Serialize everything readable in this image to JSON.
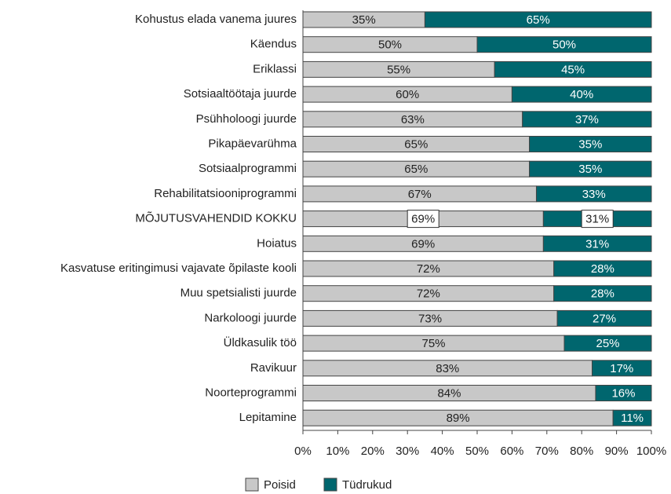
{
  "chart_data": {
    "type": "bar",
    "orientation": "horizontal",
    "stacked": true,
    "categories": [
      "Kohustus elada vanema juures",
      "Käendus",
      "Eriklassi",
      "Sotsiaaltöötaja juurde",
      "Psühholoogi juurde",
      "Pikapäevarühma",
      "Sotsiaalprogrammi",
      "Rehabilitatsiooniprogrammi",
      "MÕJUTUSVAHENDID KOKKU",
      "Hoiatus",
      "Kasvatuse eritingimusi vajavate õpilaste kooli",
      "Muu spetsialisti juurde",
      "Narkoloogi juurde",
      "Üldkasulik töö",
      "Ravikuur",
      "Noorteprogrammi",
      "Lepitamine"
    ],
    "series": [
      {
        "name": "Poisid",
        "color": "#c8c8c8",
        "label_color": "#222222",
        "values": [
          35,
          50,
          55,
          60,
          63,
          65,
          65,
          67,
          69,
          69,
          72,
          72,
          73,
          75,
          83,
          84,
          89
        ],
        "value_labels": [
          "35%",
          "50%",
          "55%",
          "60%",
          "63%",
          "65%",
          "65%",
          "67%",
          "69%",
          "69%",
          "72%",
          "72%",
          "73%",
          "75%",
          "83%",
          "84%",
          "89%"
        ]
      },
      {
        "name": "Tüdrukud",
        "color": "#00666e",
        "label_color": "#ffffff",
        "values": [
          65,
          50,
          45,
          40,
          37,
          35,
          35,
          33,
          31,
          31,
          28,
          28,
          27,
          25,
          17,
          16,
          11
        ],
        "value_labels": [
          "65%",
          "50%",
          "45%",
          "40%",
          "37%",
          "35%",
          "35%",
          "33%",
          "31%",
          "31%",
          "28%",
          "28%",
          "27%",
          "25%",
          "17%",
          "16%",
          "11%"
        ]
      }
    ],
    "boxed_labels": [
      8
    ],
    "xlim": [
      0,
      100
    ],
    "xticks": [
      {
        "value": 0,
        "label": "0%"
      },
      {
        "value": 10,
        "label": "10%"
      },
      {
        "value": 20,
        "label": "20%"
      },
      {
        "value": 30,
        "label": "30%"
      },
      {
        "value": 40,
        "label": "40%"
      },
      {
        "value": 50,
        "label": "50%"
      },
      {
        "value": 60,
        "label": "60%"
      },
      {
        "value": 70,
        "label": "70%"
      },
      {
        "value": 80,
        "label": "80%"
      },
      {
        "value": 90,
        "label": "90%"
      },
      {
        "value": 100,
        "label": "100%"
      }
    ],
    "legend": "bottom",
    "grid": false
  }
}
